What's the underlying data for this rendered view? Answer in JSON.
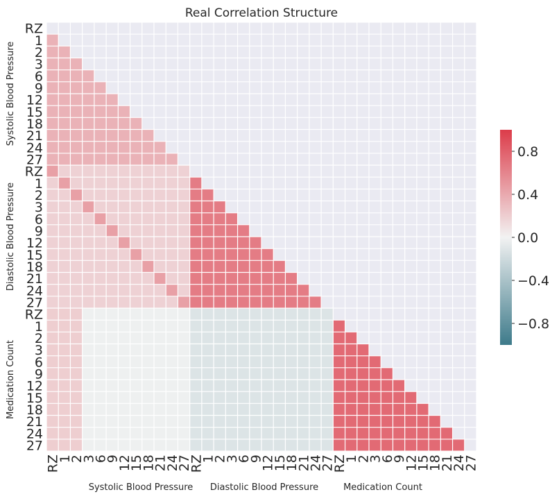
{
  "chart_data": {
    "type": "heatmap",
    "title": "Real Correlation Structure",
    "mask": "upper triangle including diagonal",
    "row_labels": [
      "RZ",
      "1",
      "2",
      "3",
      "6",
      "9",
      "12",
      "15",
      "18",
      "21",
      "24",
      "27",
      "RZ",
      "1",
      "2",
      "3",
      "6",
      "9",
      "12",
      "15",
      "18",
      "21",
      "24",
      "27",
      "RZ",
      "1",
      "2",
      "3",
      "6",
      "9",
      "12",
      "15",
      "18",
      "21",
      "24",
      "27"
    ],
    "col_labels": [
      "RZ",
      "1",
      "2",
      "3",
      "6",
      "9",
      "12",
      "15",
      "18",
      "21",
      "24",
      "27",
      "RZ",
      "1",
      "2",
      "3",
      "6",
      "9",
      "12",
      "15",
      "18",
      "21",
      "24",
      "27",
      "RZ",
      "1",
      "2",
      "3",
      "6",
      "9",
      "12",
      "15",
      "18",
      "21",
      "24",
      "27"
    ],
    "row_groups": [
      "Systolic Blood Pressure",
      "Diastolic Blood Pressure",
      "Medication Count"
    ],
    "col_groups": [
      "Systolic Blood Pressure",
      "Diastolic Blood Pressure",
      "Medication Count"
    ],
    "block_correlations": {
      "SBP_SBP": 0.35,
      "DBP_SBP": 0.18,
      "DBP_SBP_matching_timepoint": 0.45,
      "DBP_DBP": 0.65,
      "MC_SBP": 0.2,
      "MC_SBP_from_col_3": -0.02,
      "MC_DBP": -0.12,
      "MC_MC": 0.75
    },
    "colorbar": {
      "ticks": [
        "0.8",
        "0.4",
        "0.0",
        "−0.4",
        "−0.8"
      ],
      "range": [
        -1,
        1
      ],
      "low_color": "#3d7a8a",
      "mid_color": "#f2f2f2",
      "high_color": "#dc3c4a"
    },
    "background_color": "#eaeaf2"
  }
}
